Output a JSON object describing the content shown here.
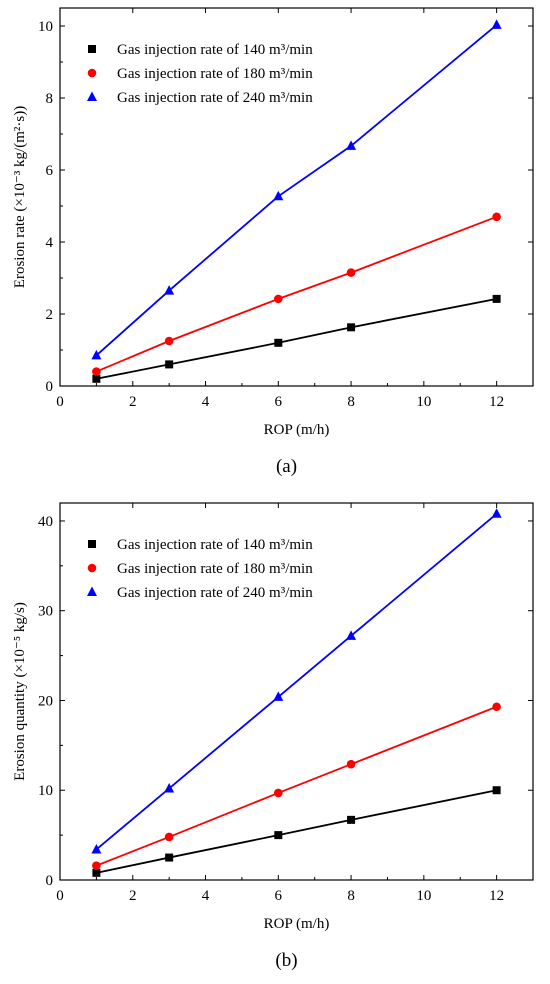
{
  "chart_data": [
    {
      "type": "line",
      "panel_label": "(a)",
      "xlabel": "ROP (m/h)",
      "ylabel": "Erosion rate (×10⁻³ kg/(m²·s))",
      "xlim": [
        0,
        13
      ],
      "ylim": [
        0,
        10.5
      ],
      "xticks": [
        0,
        2,
        4,
        6,
        8,
        10,
        12
      ],
      "yticks": [
        0,
        2,
        4,
        6,
        8,
        10
      ],
      "x": [
        1,
        3,
        6,
        8,
        12
      ],
      "legend_position": "top-left",
      "grid": false,
      "series": [
        {
          "name": "Gas injection rate of 140 m³/min",
          "marker": "square",
          "color": "#000000",
          "values": [
            0.2,
            0.6,
            1.2,
            1.63,
            2.42
          ]
        },
        {
          "name": "Gas injection rate of 180 m³/min",
          "marker": "circle",
          "color": "#ff0000",
          "values": [
            0.4,
            1.25,
            2.42,
            3.15,
            4.7
          ]
        },
        {
          "name": "Gas injection rate of 240 m³/min",
          "marker": "triangle",
          "color": "#0000ff",
          "values": [
            0.85,
            2.65,
            5.27,
            6.67,
            10.03
          ]
        }
      ]
    },
    {
      "type": "line",
      "panel_label": "(b)",
      "xlabel": "ROP (m/h)",
      "ylabel": "Erosion quantity (×10⁻⁵ kg/s)",
      "xlim": [
        0,
        13
      ],
      "ylim": [
        0,
        42
      ],
      "xticks": [
        0,
        2,
        4,
        6,
        8,
        10,
        12
      ],
      "yticks": [
        0,
        10,
        20,
        30,
        40
      ],
      "x": [
        1,
        3,
        6,
        8,
        12
      ],
      "legend_position": "top-left",
      "grid": false,
      "series": [
        {
          "name": "Gas injection rate of 140 m³/min",
          "marker": "square",
          "color": "#000000",
          "values": [
            0.8,
            2.5,
            5.0,
            6.7,
            10.0
          ]
        },
        {
          "name": "Gas injection rate of 180 m³/min",
          "marker": "circle",
          "color": "#ff0000",
          "values": [
            1.6,
            4.8,
            9.7,
            12.9,
            19.3
          ]
        },
        {
          "name": "Gas injection rate of 240 m³/min",
          "marker": "triangle",
          "color": "#0000ff",
          "values": [
            3.4,
            10.2,
            20.4,
            27.2,
            40.8
          ]
        }
      ]
    }
  ]
}
